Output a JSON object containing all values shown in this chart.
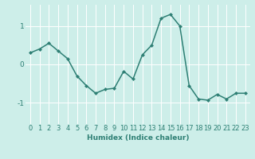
{
  "x": [
    0,
    1,
    2,
    3,
    4,
    5,
    6,
    7,
    8,
    9,
    10,
    11,
    12,
    13,
    14,
    15,
    16,
    17,
    18,
    19,
    20,
    21,
    22,
    23
  ],
  "y": [
    0.3,
    0.4,
    0.55,
    0.35,
    0.15,
    -0.3,
    -0.55,
    -0.75,
    -0.65,
    -0.62,
    -0.18,
    -0.38,
    0.25,
    0.5,
    1.2,
    1.3,
    1.0,
    -0.55,
    -0.9,
    -0.93,
    -0.78,
    -0.9,
    -0.75,
    -0.75
  ],
  "line_color": "#2e7f74",
  "marker": "D",
  "marker_size": 2.5,
  "bg_color": "#cdeee9",
  "grid_color": "#ffffff",
  "xlabel": "Humidex (Indice chaleur)",
  "ylim": [
    -1.55,
    1.55
  ],
  "xlim": [
    -0.5,
    23.5
  ],
  "yticks": [
    -1,
    0,
    1
  ],
  "xticks": [
    0,
    1,
    2,
    3,
    4,
    5,
    6,
    7,
    8,
    9,
    10,
    11,
    12,
    13,
    14,
    15,
    16,
    17,
    18,
    19,
    20,
    21,
    22,
    23
  ],
  "label_fontsize": 6.5,
  "tick_fontsize": 6.0,
  "linewidth": 1.1
}
